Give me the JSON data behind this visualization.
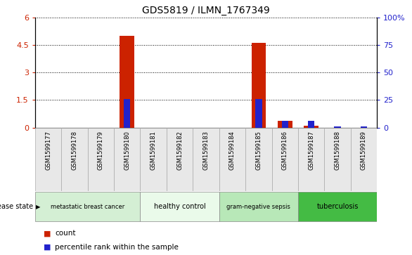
{
  "title": "GDS5819 / ILMN_1767349",
  "samples": [
    "GSM1599177",
    "GSM1599178",
    "GSM1599179",
    "GSM1599180",
    "GSM1599181",
    "GSM1599182",
    "GSM1599183",
    "GSM1599184",
    "GSM1599185",
    "GSM1599186",
    "GSM1599187",
    "GSM1599188",
    "GSM1599189"
  ],
  "count_values": [
    0,
    0,
    0,
    5.0,
    0,
    0,
    0,
    0,
    4.65,
    0.35,
    0.08,
    0,
    0
  ],
  "percentile_values": [
    0,
    0,
    0,
    26.0,
    0,
    0,
    0,
    0,
    26.0,
    6.0,
    6.0,
    1.0,
    1.0
  ],
  "ylim_left": [
    0,
    6
  ],
  "ylim_right": [
    0,
    100
  ],
  "yticks_left": [
    0,
    1.5,
    3.0,
    4.5,
    6.0
  ],
  "yticks_right": [
    0,
    25,
    50,
    75,
    100
  ],
  "ytick_labels_left": [
    "0",
    "1.5",
    "3",
    "4.5",
    "6"
  ],
  "ytick_labels_right": [
    "0",
    "25",
    "50",
    "75",
    "100%"
  ],
  "groups": [
    {
      "label": "metastatic breast cancer",
      "start": 0,
      "end": 4,
      "color": "#d4efd4"
    },
    {
      "label": "healthy control",
      "start": 4,
      "end": 7,
      "color": "#eafaea"
    },
    {
      "label": "gram-negative sepsis",
      "start": 7,
      "end": 10,
      "color": "#b8e8b8"
    },
    {
      "label": "tuberculosis",
      "start": 10,
      "end": 13,
      "color": "#44bb44"
    }
  ],
  "bar_color_red": "#cc2200",
  "bar_color_blue": "#2222cc",
  "background_color": "#ffffff",
  "tick_color_left": "#cc2200",
  "tick_color_right": "#2222cc",
  "disease_state_label": "disease state",
  "legend_count": "count",
  "legend_percentile": "percentile rank within the sample"
}
